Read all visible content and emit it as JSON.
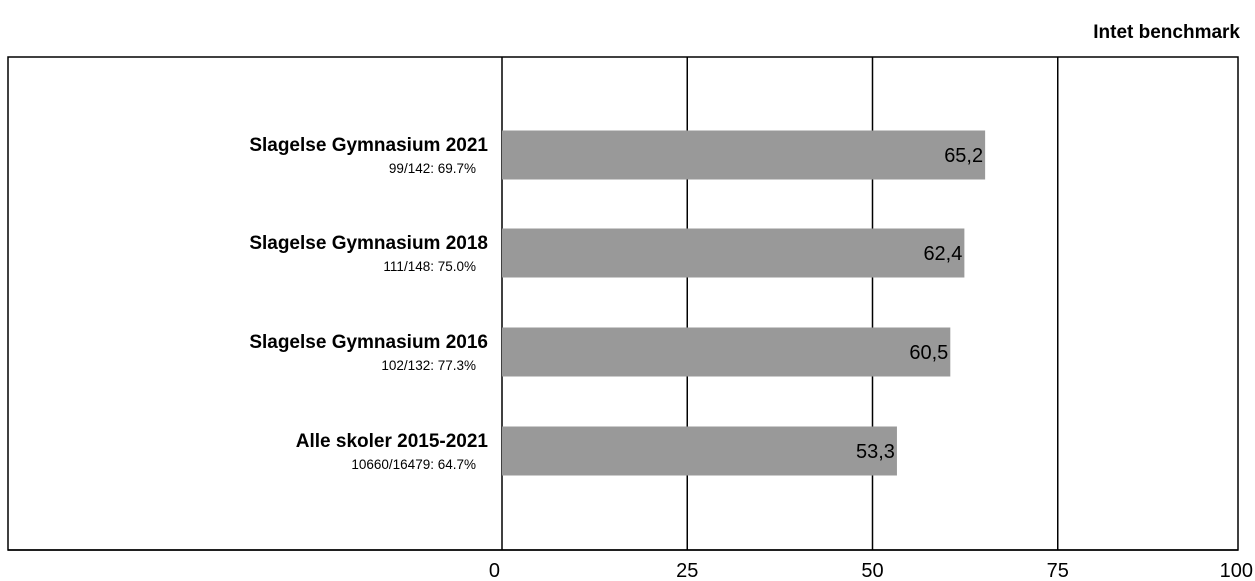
{
  "header": {
    "benchmark_label": "Intet benchmark"
  },
  "chart_data": {
    "type": "bar",
    "orientation": "horizontal",
    "title": "",
    "xlabel": "",
    "ylabel": "",
    "xlim": [
      0,
      100
    ],
    "xticks": [
      0,
      25,
      50,
      75,
      100
    ],
    "grid": true,
    "bar_color": "#999999",
    "categories": [
      {
        "label": "Slagelse Gymnasium 2021",
        "sublabel": "99/142: 69.7%"
      },
      {
        "label": "Slagelse Gymnasium 2018",
        "sublabel": "111/148: 75.0%"
      },
      {
        "label": "Slagelse Gymnasium 2016",
        "sublabel": "102/132: 77.3%"
      },
      {
        "label": "Alle skoler 2015-2021",
        "sublabel": "10660/16479: 64.7%"
      }
    ],
    "values": [
      65.2,
      62.4,
      60.5,
      53.3
    ],
    "value_labels": [
      "65,2",
      "62,4",
      "60,5",
      "53,3"
    ]
  }
}
